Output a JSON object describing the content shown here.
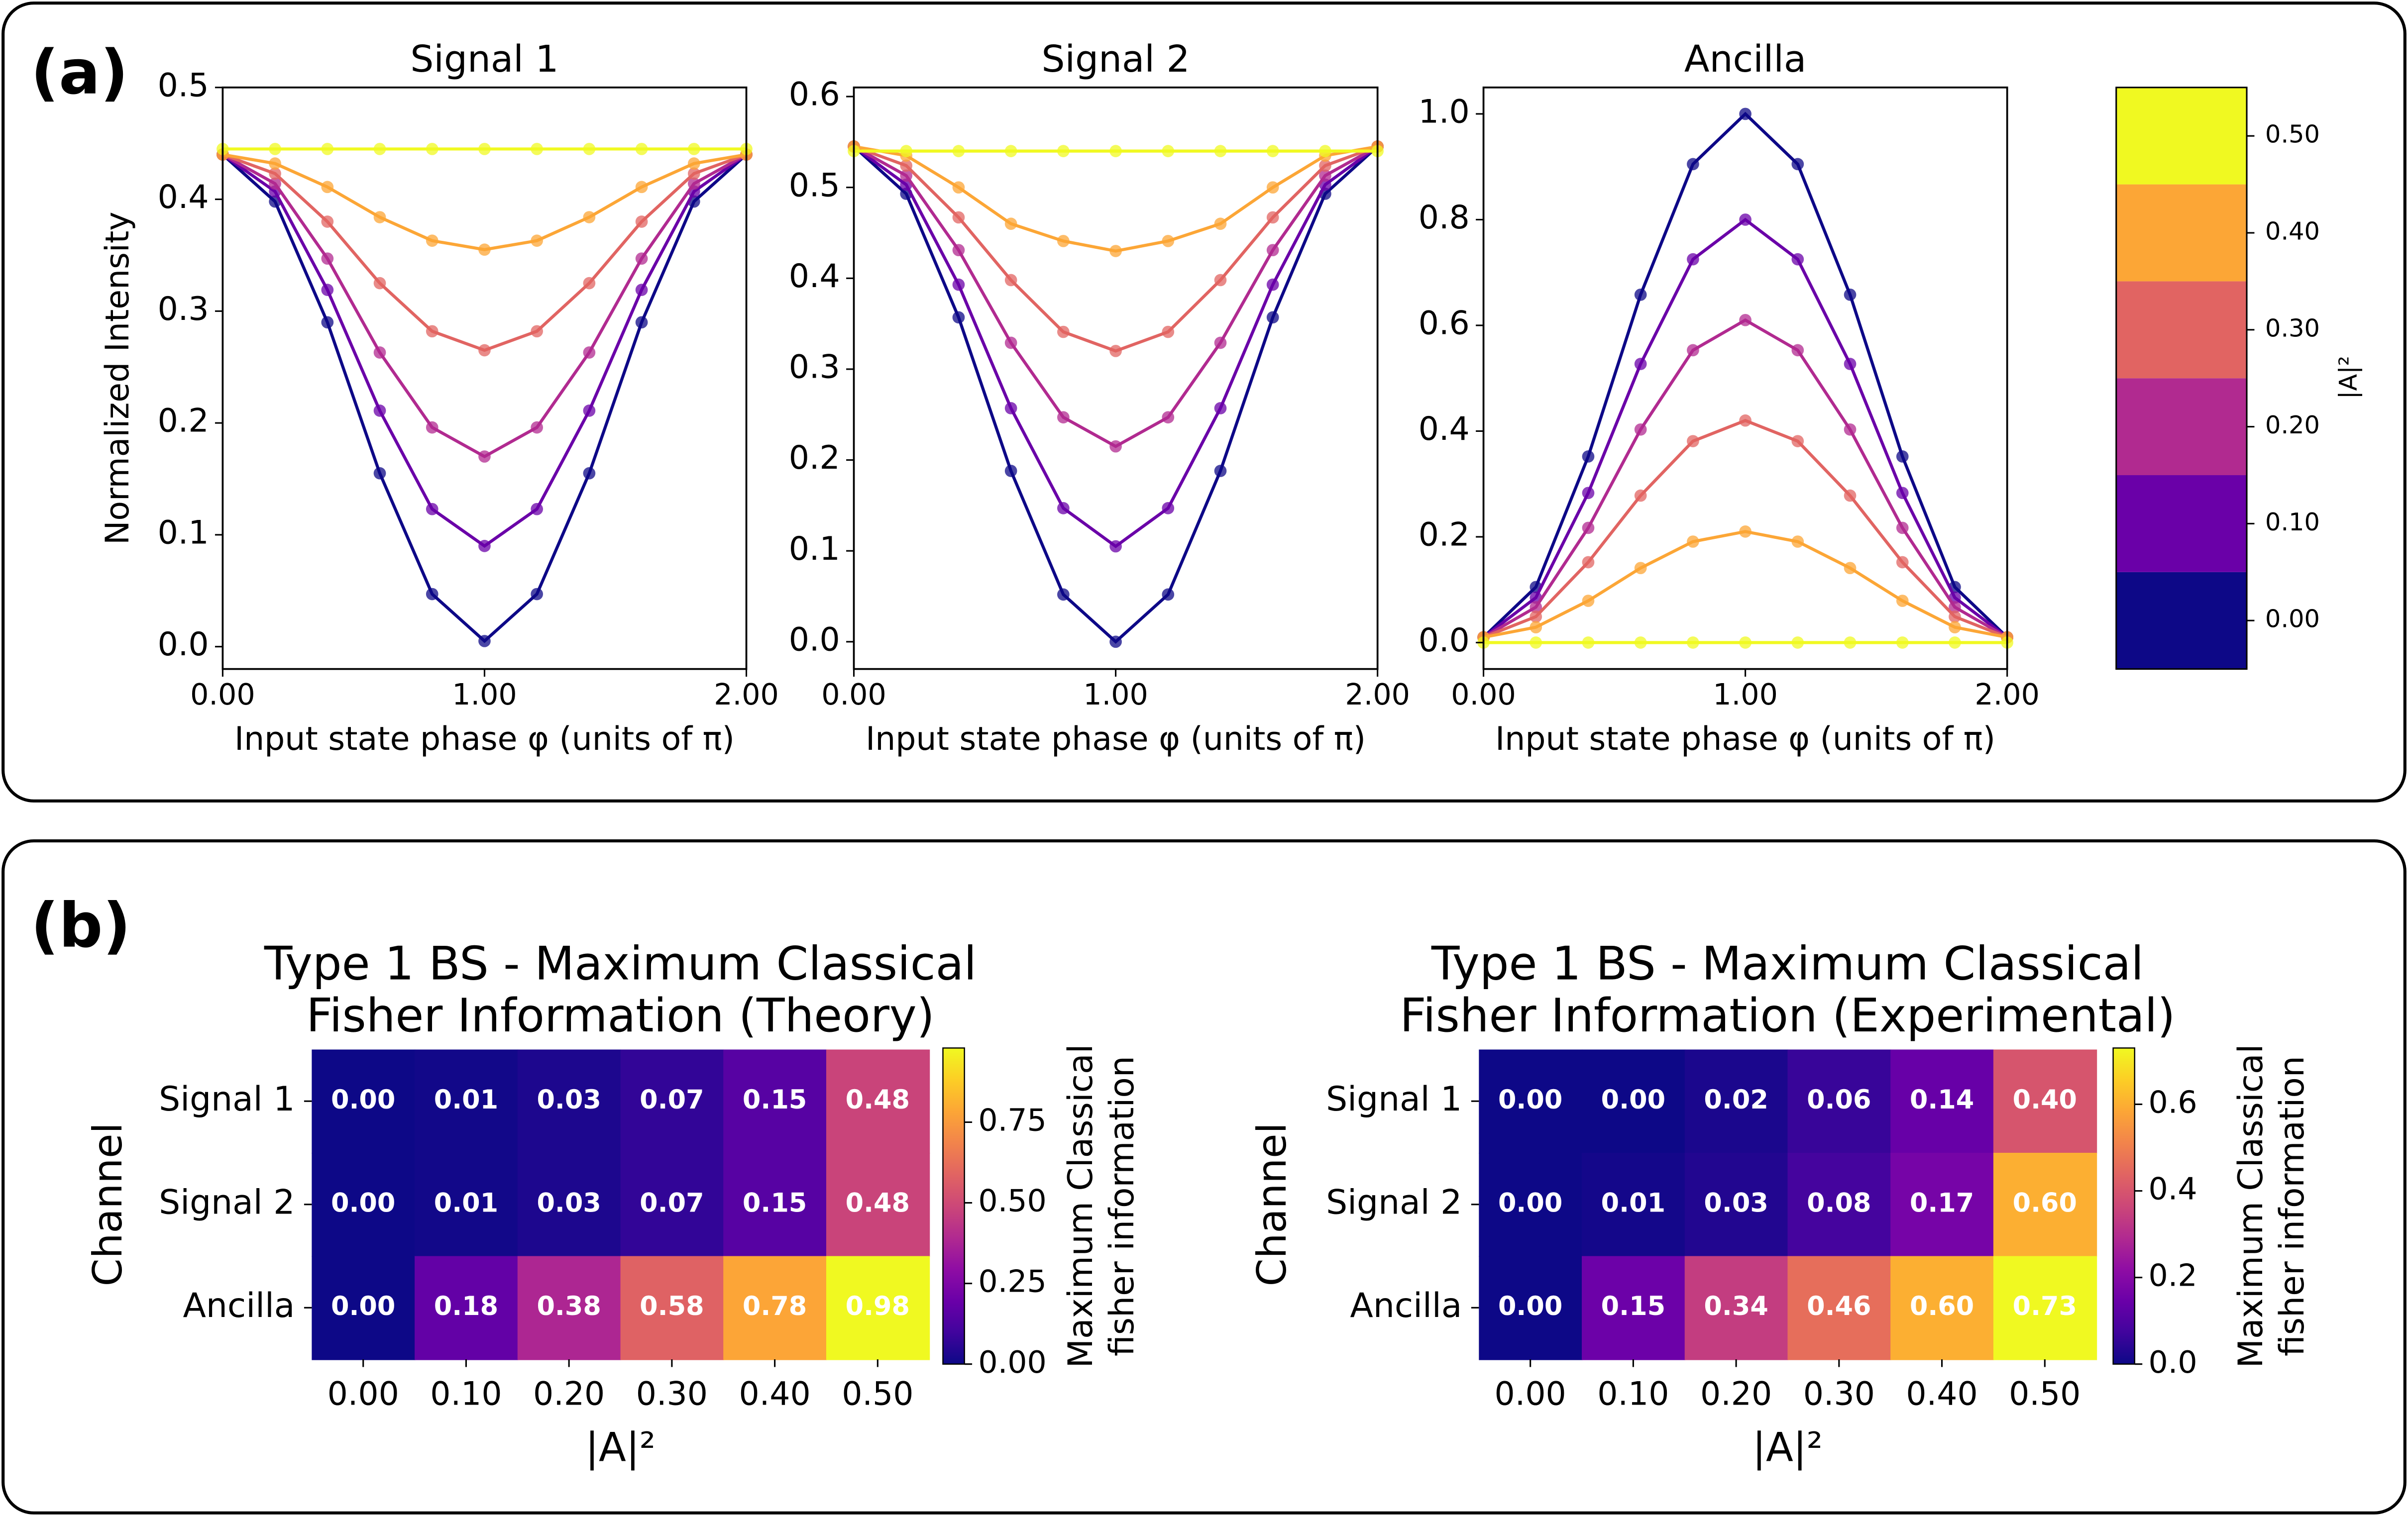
{
  "panel_labels": [
    "(a)",
    "(b)"
  ],
  "chart_data": [
    {
      "type": "line",
      "title": "Signal 1",
      "y_label": "Normalized Intensity",
      "x_label": "Input state phase φ (units of π)",
      "grid": false,
      "x": [
        0,
        0.2,
        0.4,
        0.6,
        0.8,
        1.0,
        1.2,
        1.4,
        1.6,
        1.8,
        2.0
      ],
      "xlim": [
        0,
        2
      ],
      "xticks": [
        {
          "value": 0,
          "label": "0.00"
        },
        {
          "value": 1,
          "label": "1.00"
        },
        {
          "value": 2,
          "label": "2.00"
        }
      ],
      "ylim": [
        -0.02,
        0.5
      ],
      "yticks": [
        {
          "value": 0,
          "label": "0.0"
        },
        0.1,
        0.2,
        0.3,
        0.4,
        0.5
      ],
      "series": [
        {
          "color": "#0d0887",
          "values": [
            0.44,
            0.398,
            0.29,
            0.155,
            0.047,
            0.005,
            0.047,
            0.155,
            0.29,
            0.398,
            0.44
          ]
        },
        {
          "color": "#6a00a8",
          "values": [
            0.44,
            0.407,
            0.319,
            0.211,
            0.123,
            0.09,
            0.123,
            0.211,
            0.319,
            0.407,
            0.44
          ]
        },
        {
          "color": "#b12a90",
          "values": [
            0.44,
            0.414,
            0.347,
            0.263,
            0.196,
            0.17,
            0.196,
            0.263,
            0.347,
            0.414,
            0.44
          ]
        },
        {
          "color": "#e16462",
          "values": [
            0.44,
            0.423,
            0.38,
            0.325,
            0.282,
            0.265,
            0.282,
            0.325,
            0.38,
            0.423,
            0.44
          ]
        },
        {
          "color": "#fca636",
          "values": [
            0.44,
            0.432,
            0.411,
            0.384,
            0.363,
            0.355,
            0.363,
            0.384,
            0.411,
            0.432,
            0.44
          ]
        },
        {
          "color": "#f0f921",
          "values": [
            0.445,
            0.445,
            0.445,
            0.445,
            0.445,
            0.445,
            0.445,
            0.445,
            0.445,
            0.445,
            0.445
          ]
        }
      ]
    },
    {
      "type": "line",
      "title": "Signal 2",
      "x_label": "Input state phase φ (units of π)",
      "grid": false,
      "x": [
        0,
        0.2,
        0.4,
        0.6,
        0.8,
        1.0,
        1.2,
        1.4,
        1.6,
        1.8,
        2.0
      ],
      "xlim": [
        0,
        2
      ],
      "xticks": [
        {
          "value": 0,
          "label": "0.00"
        },
        {
          "value": 1,
          "label": "1.00"
        },
        {
          "value": 2,
          "label": "2.00"
        }
      ],
      "ylim": [
        -0.03,
        0.61
      ],
      "yticks": [
        {
          "value": 0,
          "label": "0.0"
        },
        0.1,
        0.2,
        0.3,
        0.4,
        0.5,
        0.6
      ],
      "series": [
        {
          "color": "#0d0887",
          "values": [
            0.545,
            0.493,
            0.357,
            0.188,
            0.052,
            0.0,
            0.052,
            0.188,
            0.357,
            0.493,
            0.545
          ]
        },
        {
          "color": "#6a00a8",
          "values": [
            0.545,
            0.503,
            0.393,
            0.257,
            0.147,
            0.105,
            0.147,
            0.257,
            0.393,
            0.503,
            0.545
          ]
        },
        {
          "color": "#b12a90",
          "values": [
            0.545,
            0.513,
            0.431,
            0.329,
            0.247,
            0.215,
            0.247,
            0.329,
            0.431,
            0.513,
            0.545
          ]
        },
        {
          "color": "#e16462",
          "values": [
            0.545,
            0.524,
            0.467,
            0.398,
            0.341,
            0.32,
            0.341,
            0.398,
            0.467,
            0.524,
            0.545
          ]
        },
        {
          "color": "#fca636",
          "values": [
            0.545,
            0.535,
            0.5,
            0.46,
            0.441,
            0.43,
            0.441,
            0.46,
            0.5,
            0.535,
            0.545
          ]
        },
        {
          "color": "#f0f921",
          "values": [
            0.54,
            0.54,
            0.54,
            0.54,
            0.54,
            0.54,
            0.54,
            0.54,
            0.54,
            0.54,
            0.54
          ]
        }
      ]
    },
    {
      "type": "line",
      "title": "Ancilla",
      "x_label": "Input state phase φ (units of π)",
      "grid": false,
      "x": [
        0,
        0.2,
        0.4,
        0.6,
        0.8,
        1.0,
        1.2,
        1.4,
        1.6,
        1.8,
        2.0
      ],
      "xlim": [
        0,
        2
      ],
      "xticks": [
        {
          "value": 0,
          "label": "0.00"
        },
        {
          "value": 1,
          "label": "1.00"
        },
        {
          "value": 2,
          "label": "2.00"
        }
      ],
      "ylim": [
        -0.05,
        1.05
      ],
      "yticks": [
        {
          "value": 0,
          "label": "0.0"
        },
        0.2,
        0.4,
        0.6,
        0.8,
        {
          "value": 1,
          "label": "1.0"
        }
      ],
      "series": [
        {
          "color": "#0d0887",
          "values": [
            0.01,
            0.105,
            0.352,
            0.658,
            0.905,
            1.0,
            0.905,
            0.658,
            0.352,
            0.105,
            0.01
          ]
        },
        {
          "color": "#6a00a8",
          "values": [
            0.01,
            0.085,
            0.283,
            0.527,
            0.725,
            0.8,
            0.725,
            0.527,
            0.283,
            0.085,
            0.01
          ]
        },
        {
          "color": "#b12a90",
          "values": [
            0.01,
            0.067,
            0.217,
            0.403,
            0.553,
            0.61,
            0.553,
            0.403,
            0.217,
            0.067,
            0.01
          ]
        },
        {
          "color": "#e16462",
          "values": [
            0.01,
            0.049,
            0.152,
            0.278,
            0.381,
            0.42,
            0.381,
            0.278,
            0.152,
            0.049,
            0.01
          ]
        },
        {
          "color": "#fca636",
          "values": [
            0.01,
            0.029,
            0.079,
            0.141,
            0.191,
            0.21,
            0.191,
            0.141,
            0.079,
            0.029,
            0.01
          ]
        },
        {
          "color": "#f0f921",
          "values": [
            0,
            0,
            0,
            0,
            0,
            0,
            0,
            0,
            0,
            0,
            0
          ]
        }
      ]
    },
    {
      "type": "colorbar",
      "label": "|A|²",
      "levels": [
        -0.05,
        0.05,
        0.15,
        0.25,
        0.35,
        0.45,
        0.55
      ],
      "colors": [
        "#0d0887",
        "#6a00a8",
        "#b12a90",
        "#e16462",
        "#fca636",
        "#f0f921"
      ],
      "ylim": [
        -0.05,
        0.55
      ],
      "yticks": [
        {
          "value": 0,
          "label": "0.00"
        },
        {
          "value": 0.1,
          "label": "0.10"
        },
        {
          "value": 0.2,
          "label": "0.20"
        },
        {
          "value": 0.3,
          "label": "0.30"
        },
        {
          "value": 0.4,
          "label": "0.40"
        },
        {
          "value": 0.5,
          "label": "0.50"
        }
      ]
    },
    {
      "type": "heatmap",
      "title": [
        "Type 1 BS - Maximum Classical",
        "Fisher Information (Theory)"
      ],
      "x_label": "|A|²",
      "y_label": "Channel",
      "colormap": "plasma",
      "categories": [
        "0.00",
        "0.10",
        "0.20",
        "0.30",
        "0.40",
        "0.50"
      ],
      "rows": [
        "Signal 1",
        "Signal 2",
        "Ancilla"
      ],
      "values": [
        [
          0,
          0.01,
          0.03,
          0.07,
          0.15,
          0.48
        ],
        [
          0,
          0.01,
          0.03,
          0.07,
          0.15,
          0.48
        ],
        [
          0,
          0.18,
          0.38,
          0.58,
          0.78,
          0.98
        ]
      ],
      "value_labels": [
        [
          "0.00",
          "0.01",
          "0.03",
          "0.07",
          "0.15",
          "0.48"
        ],
        [
          "0.00",
          "0.01",
          "0.03",
          "0.07",
          "0.15",
          "0.48"
        ],
        [
          "0.00",
          "0.18",
          "0.38",
          "0.58",
          "0.78",
          "0.98"
        ]
      ],
      "colorbar": {
        "label": [
          "Maximum Classical",
          "fisher information"
        ],
        "lim": [
          0,
          0.98
        ],
        "ticks": [
          {
            "value": 0,
            "label": "0.00"
          },
          0.25,
          {
            "value": 0.5,
            "label": "0.50"
          },
          0.75
        ]
      }
    },
    {
      "type": "heatmap",
      "title": [
        "Type 1 BS - Maximum Classical",
        "Fisher Information (Experimental)"
      ],
      "x_label": "|A|²",
      "y_label": "Channel",
      "colormap": "plasma",
      "categories": [
        "0.00",
        "0.10",
        "0.20",
        "0.30",
        "0.40",
        "0.50"
      ],
      "rows": [
        "Signal 1",
        "Signal 2",
        "Ancilla"
      ],
      "values": [
        [
          0,
          0,
          0.02,
          0.06,
          0.14,
          0.4
        ],
        [
          0,
          0.01,
          0.03,
          0.08,
          0.17,
          0.6
        ],
        [
          0,
          0.15,
          0.34,
          0.46,
          0.6,
          0.73
        ]
      ],
      "value_labels": [
        [
          "0.00",
          "0.00",
          "0.02",
          "0.06",
          "0.14",
          "0.40"
        ],
        [
          "0.00",
          "0.01",
          "0.03",
          "0.08",
          "0.17",
          "0.60"
        ],
        [
          "0.00",
          "0.15",
          "0.34",
          "0.46",
          "0.60",
          "0.73"
        ]
      ],
      "colorbar": {
        "label": [
          "Maximum Classical",
          "fisher information"
        ],
        "lim": [
          0,
          0.73
        ],
        "ticks": [
          {
            "value": 0,
            "label": "0.0"
          },
          0.2,
          0.4,
          0.6
        ]
      }
    }
  ]
}
